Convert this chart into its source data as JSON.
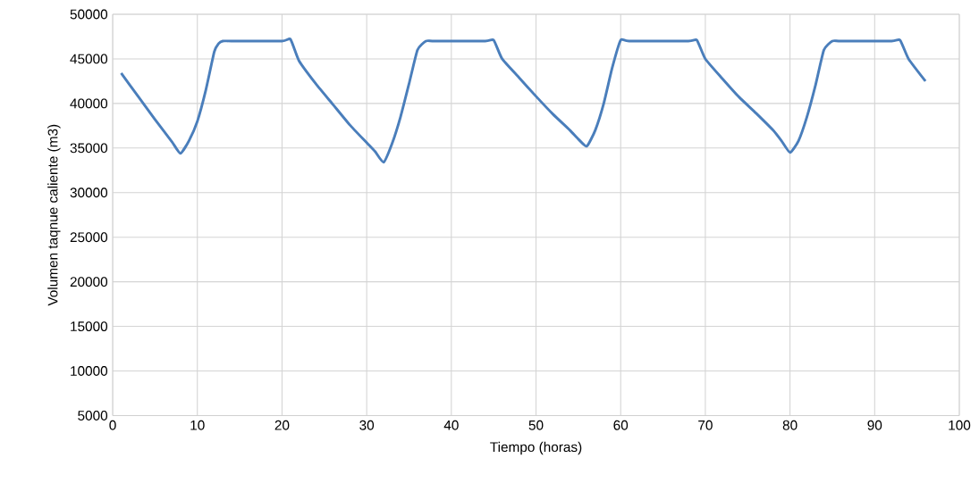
{
  "chart_data": {
    "type": "line",
    "xlabel": "Tiempo (horas)",
    "ylabel": "Volumen taqnue caliente (m3)",
    "xlim": [
      0,
      100
    ],
    "xticks": [
      0,
      10,
      20,
      30,
      40,
      50,
      60,
      70,
      80,
      90,
      100
    ],
    "ylim": [
      5000,
      50000
    ],
    "yticks": [
      5000,
      10000,
      15000,
      20000,
      25000,
      30000,
      35000,
      40000,
      45000,
      50000
    ],
    "grid": true,
    "marker": "none",
    "line_style": "solid",
    "series": [
      {
        "color": "#4a7ebb",
        "x": [
          1,
          3,
          5,
          7,
          8,
          9,
          10,
          11,
          12,
          12.5,
          13,
          14,
          20,
          21,
          22,
          24,
          26,
          28,
          30,
          31,
          32,
          33,
          34,
          35,
          36,
          37,
          38,
          44,
          45,
          46,
          48,
          50,
          52,
          54,
          55,
          56,
          57,
          58,
          59,
          60,
          61,
          68,
          69,
          70,
          72,
          74,
          76,
          78,
          79,
          80,
          81,
          82,
          83,
          84,
          85,
          86,
          92,
          93,
          94,
          96
        ],
        "values": [
          43400,
          40800,
          38200,
          35700,
          34400,
          35800,
          38000,
          41500,
          45800,
          46700,
          47000,
          47000,
          47000,
          47200,
          44800,
          42200,
          39900,
          37600,
          35600,
          34600,
          33400,
          35500,
          38500,
          42200,
          46000,
          47000,
          47000,
          47000,
          47100,
          45000,
          42900,
          40800,
          38800,
          37000,
          36000,
          35200,
          37000,
          40000,
          44000,
          47100,
          47000,
          47000,
          47100,
          45000,
          42800,
          40700,
          38900,
          37000,
          35800,
          34500,
          35800,
          38500,
          42000,
          46000,
          47000,
          47000,
          47000,
          47100,
          45000,
          42500
        ]
      }
    ]
  }
}
